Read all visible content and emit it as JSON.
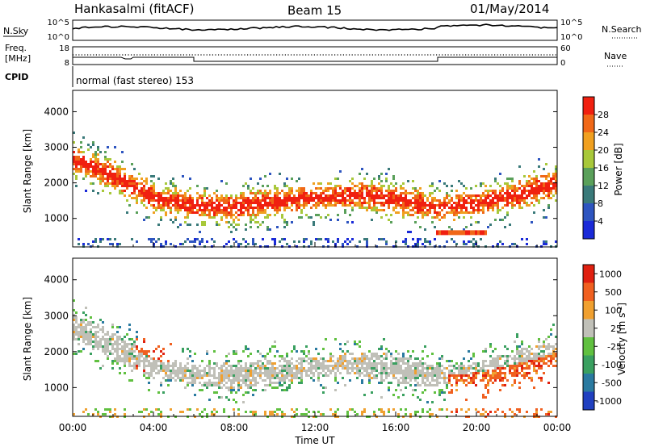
{
  "header": {
    "station": "Hankasalmi (fitACF)",
    "beam": "Beam 15",
    "date": "01/May/2014"
  },
  "top_panels": {
    "nsky_label": "N.Sky",
    "nsky_ticks": [
      "10^5",
      "10^0"
    ],
    "nsearch_label": "N.Search",
    "nsearch_ticks": [
      "10^5",
      "10^0"
    ],
    "freq_label_1": "Freq.",
    "freq_label_2": "[MHz]",
    "freq_ticks": [
      "18",
      "8"
    ],
    "nave_label": "Nave",
    "nave_ticks": [
      "60",
      "0"
    ],
    "cpid_label": "CPID",
    "cpid_text": "normal (fast stereo) 153"
  },
  "chart_data": [
    {
      "type": "heatmap",
      "name": "power",
      "ylabel": "Slant Range [km]",
      "ylim": [
        200,
        4600
      ],
      "yticks": [
        1000,
        2000,
        3000,
        4000
      ],
      "colorbar_label": "Power [dB]",
      "colorbar_ticks": [
        "4",
        "8",
        "12",
        "16",
        "20",
        "24",
        "28"
      ],
      "colors": [
        "#1a2ad8",
        "#2e55c0",
        "#3a7a7a",
        "#5aa05a",
        "#a8c83a",
        "#f0a020",
        "#f06818",
        "#f02010"
      ],
      "echo_band_centers_km": {
        "hours": [
          0,
          2,
          4,
          6,
          8,
          10,
          12,
          14,
          16,
          18,
          20,
          22,
          24
        ],
        "range": [
          2700,
          2200,
          1600,
          1400,
          1350,
          1500,
          1600,
          1700,
          1550,
          1350,
          1450,
          1700,
          2000
        ]
      }
    },
    {
      "type": "heatmap",
      "name": "velocity",
      "ylabel": "Slant Range [km]",
      "ylim": [
        200,
        4600
      ],
      "yticks": [
        1000,
        2000,
        3000,
        4000
      ],
      "colorbar_label": "Velocity [m s",
      "colorbar_unit_sup": "-1",
      "colorbar_unit_end": "]",
      "colorbar_ticks": [
        "1000",
        "500",
        "100",
        "25",
        "-25",
        "-100",
        "-500",
        "-1000"
      ],
      "colors": [
        "#2040c0",
        "#2a7aa0",
        "#3aa060",
        "#60c040",
        "#c0c0b8",
        "#f0a030",
        "#f06020",
        "#e02010"
      ]
    }
  ],
  "time_axis": {
    "ticks": [
      "00:00",
      "04:00",
      "08:00",
      "12:00",
      "16:00",
      "20:00",
      "00:00"
    ],
    "label": "Time UT"
  }
}
